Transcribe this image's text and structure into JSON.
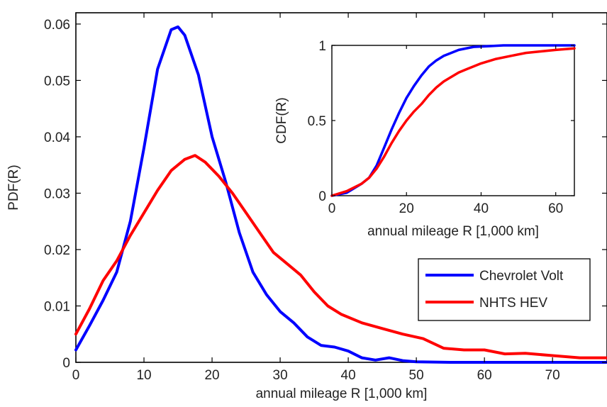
{
  "chart_data": [
    {
      "type": "line",
      "xlabel": "annual mileage R [1,000 km]",
      "ylabel": "PDF(R)",
      "xlim": [
        0,
        78
      ],
      "ylim": [
        0,
        0.062
      ],
      "xticks": [
        "0",
        "10",
        "20",
        "30",
        "40",
        "50",
        "60",
        "70"
      ],
      "yticks": [
        "0",
        "0.01",
        "0.02",
        "0.03",
        "0.04",
        "0.05",
        "0.06"
      ],
      "grid": false,
      "legend_position": "center-right",
      "series": [
        {
          "name": "Chevrolet Volt",
          "color": "#0000ff",
          "x": [
            0,
            2,
            4,
            6,
            8,
            10,
            12,
            14,
            15,
            16,
            18,
            20,
            22,
            24,
            26,
            28,
            30,
            32,
            34,
            36,
            38,
            40,
            42,
            44,
            46,
            48,
            50,
            55,
            60,
            78
          ],
          "y": [
            0.0022,
            0.0065,
            0.011,
            0.016,
            0.025,
            0.038,
            0.052,
            0.059,
            0.0595,
            0.058,
            0.051,
            0.04,
            0.032,
            0.023,
            0.016,
            0.012,
            0.009,
            0.007,
            0.0045,
            0.003,
            0.0027,
            0.002,
            0.0008,
            0.0004,
            0.0008,
            0.0003,
            0.0001,
            0.0,
            0.0,
            0.0
          ]
        },
        {
          "name": "NHTS HEV",
          "color": "#ff0000",
          "x": [
            0,
            2,
            4,
            6,
            8,
            10,
            12,
            14,
            16,
            17.5,
            19,
            21,
            23,
            25,
            27,
            29,
            31,
            33,
            35,
            37,
            39,
            42,
            45,
            48,
            51,
            54,
            57,
            60,
            63,
            66,
            70,
            74,
            78
          ],
          "y": [
            0.005,
            0.0095,
            0.0145,
            0.018,
            0.0225,
            0.0265,
            0.0305,
            0.034,
            0.036,
            0.0367,
            0.0355,
            0.033,
            0.03,
            0.0265,
            0.023,
            0.0195,
            0.0175,
            0.0155,
            0.0125,
            0.01,
            0.0085,
            0.007,
            0.006,
            0.005,
            0.0042,
            0.0025,
            0.0022,
            0.0022,
            0.0015,
            0.0016,
            0.0012,
            0.0008,
            0.0008
          ]
        }
      ]
    },
    {
      "type": "line",
      "xlabel": "annual mileage R [1,000 km]",
      "ylabel": "CDF(R)",
      "xlim": [
        0,
        65
      ],
      "ylim": [
        0,
        1
      ],
      "xticks": [
        "0",
        "20",
        "40",
        "60"
      ],
      "yticks": [
        "0",
        "0.5",
        "1"
      ],
      "grid": false,
      "series": [
        {
          "name": "Chevrolet Volt",
          "color": "#0000ff",
          "x": [
            0,
            4,
            8,
            10,
            12,
            14,
            16,
            18,
            20,
            22,
            24,
            26,
            28,
            30,
            34,
            38,
            42,
            46,
            50,
            65
          ],
          "y": [
            0,
            0.02,
            0.08,
            0.12,
            0.2,
            0.32,
            0.44,
            0.55,
            0.65,
            0.73,
            0.8,
            0.86,
            0.9,
            0.93,
            0.97,
            0.99,
            0.995,
            1.0,
            1.0,
            1.0
          ]
        },
        {
          "name": "NHTS HEV",
          "color": "#ff0000",
          "x": [
            0,
            4,
            8,
            10,
            12,
            14,
            16,
            18,
            20,
            22,
            24,
            26,
            28,
            30,
            32,
            34,
            36,
            40,
            44,
            48,
            52,
            56,
            60,
            65
          ],
          "y": [
            0,
            0.03,
            0.08,
            0.12,
            0.18,
            0.26,
            0.35,
            0.43,
            0.5,
            0.56,
            0.61,
            0.67,
            0.72,
            0.76,
            0.79,
            0.82,
            0.84,
            0.88,
            0.91,
            0.93,
            0.95,
            0.96,
            0.97,
            0.98
          ]
        }
      ]
    }
  ]
}
